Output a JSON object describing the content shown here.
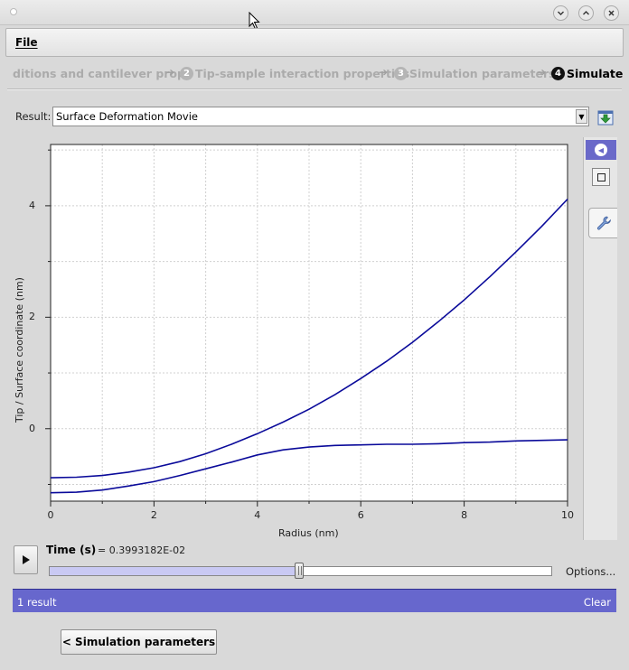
{
  "menubar": {
    "file_label": "File"
  },
  "wizard": {
    "step1_partial_label": "ditions and cantilever prop.",
    "step2_number": "2",
    "step2_label": "Tip-sample interaction properties",
    "step3_number": "3",
    "step3_label": "Simulation parameters",
    "step4_number": "4",
    "step4_label": "Simulate"
  },
  "result": {
    "label": "Result:",
    "selected": "Surface Deformation Movie"
  },
  "playback": {
    "time_label": "Time (s)",
    "time_value": "= 0.3993182E-02",
    "slider_fraction": 0.497,
    "options_label": "Options..."
  },
  "results_bar": {
    "count": "1 result",
    "clear_label": "Clear"
  },
  "back_button": {
    "label": "< Simulation parameters"
  },
  "colors": {
    "accent": "#6767cd",
    "curve": "#0a0a9a"
  },
  "icons": {
    "window_minimize": "chevron-down-icon",
    "window_maximize": "chevron-up-icon",
    "window_close": "close-icon",
    "export": "export-icon",
    "collapse_panel": "arrow-left-icon",
    "stop": "stop-icon",
    "settings": "wrench-icon",
    "play": "play-icon"
  },
  "chart_data": {
    "type": "line",
    "title": "",
    "xlabel": "Radius (nm)",
    "ylabel": "Tip / Surface coordinate (nm)",
    "xlim": [
      0,
      10
    ],
    "ylim": [
      -1.3,
      5.1
    ],
    "xticks": [
      0,
      2,
      4,
      6,
      8,
      10
    ],
    "yticks": [
      0,
      2,
      4
    ],
    "grid": true,
    "legend": "none",
    "series": [
      {
        "x": [
          0,
          0.5,
          1,
          1.5,
          2,
          2.5,
          3,
          3.5,
          4,
          4.5,
          5,
          5.5,
          6,
          6.5,
          7,
          7.5,
          8,
          8.5,
          9,
          9.5,
          10
        ],
        "y": [
          -0.88,
          -0.87,
          -0.84,
          -0.78,
          -0.7,
          -0.59,
          -0.45,
          -0.28,
          -0.09,
          0.12,
          0.35,
          0.61,
          0.9,
          1.21,
          1.55,
          1.92,
          2.31,
          2.73,
          3.17,
          3.63,
          4.12
        ]
      },
      {
        "x": [
          0,
          0.5,
          1,
          1.5,
          2,
          2.5,
          3,
          3.5,
          4,
          4.5,
          5,
          5.5,
          6,
          6.5,
          7,
          7.5,
          8,
          8.5,
          9,
          9.5,
          10
        ],
        "y": [
          -1.15,
          -1.14,
          -1.1,
          -1.03,
          -0.95,
          -0.84,
          -0.72,
          -0.6,
          -0.47,
          -0.38,
          -0.33,
          -0.3,
          -0.29,
          -0.28,
          -0.28,
          -0.27,
          -0.25,
          -0.24,
          -0.22,
          -0.21,
          -0.2
        ]
      }
    ]
  }
}
